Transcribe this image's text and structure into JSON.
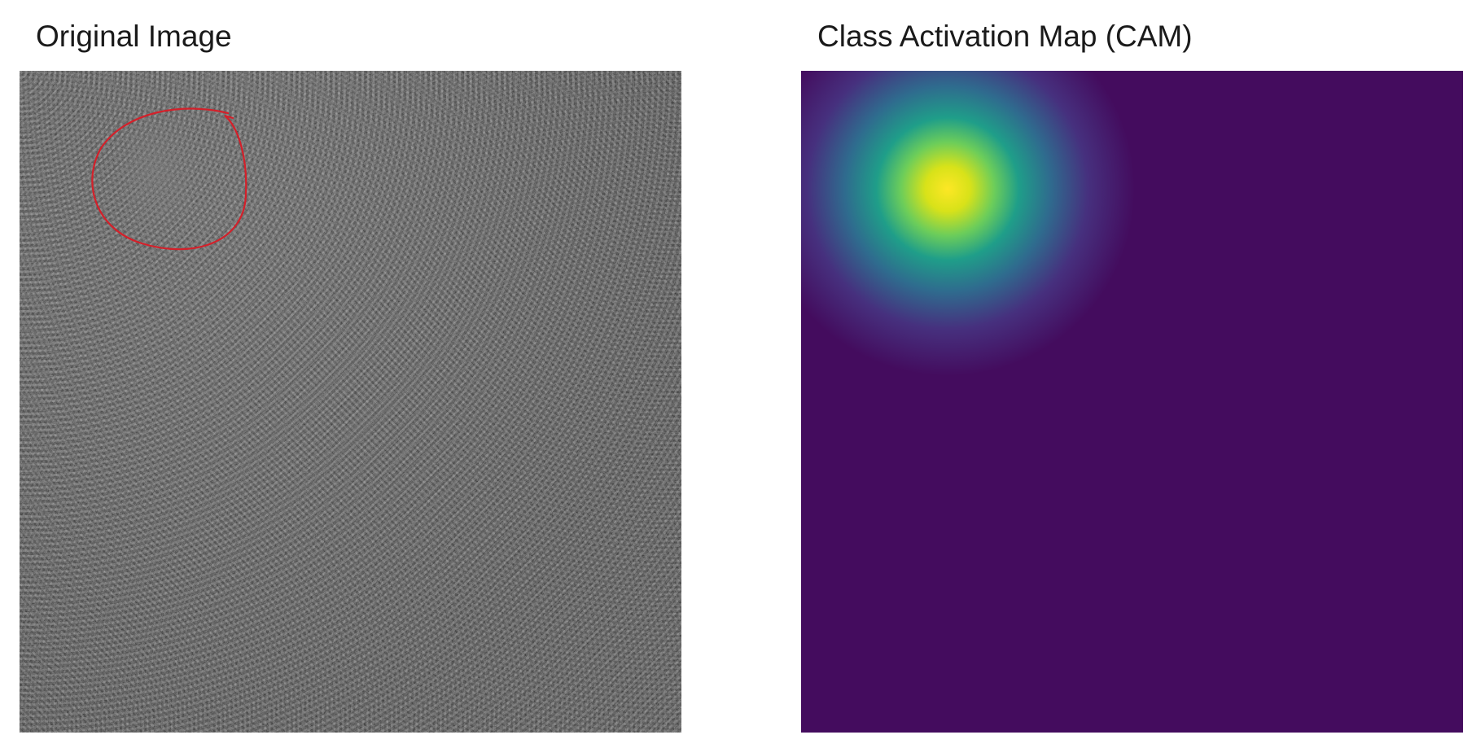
{
  "panels": {
    "left": {
      "title": "Original Image"
    },
    "right": {
      "title": "Class Activation Map (CAM)"
    }
  },
  "colors": {
    "background": "#ffffff",
    "annotation_circle": "#d4202a",
    "cam_low": "#440c5e",
    "cam_mid_blue": "#2f6b8e",
    "cam_teal": "#1f9e89",
    "cam_green": "#6ccd5a",
    "cam_peak": "#fde725"
  }
}
